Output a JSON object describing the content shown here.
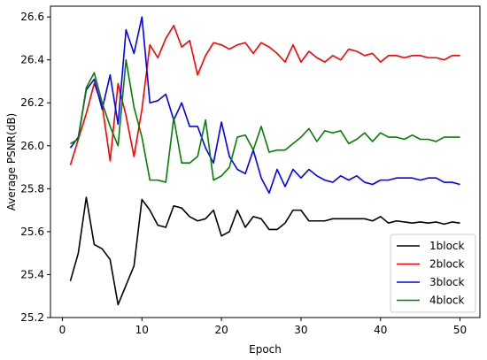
{
  "chart_data": {
    "type": "line",
    "title": "",
    "xlabel": "Epoch",
    "ylabel": "Average PSNR(dB)",
    "xlim": [
      -1.5,
      52.5
    ],
    "ylim": [
      25.2,
      26.65
    ],
    "x_ticks": [
      0,
      10,
      20,
      30,
      40,
      50
    ],
    "y_ticks": [
      25.2,
      25.4,
      25.6,
      25.8,
      26.0,
      26.2,
      26.4,
      26.6
    ],
    "grid": false,
    "legend_position": "lower-right",
    "x": [
      1,
      2,
      3,
      4,
      5,
      6,
      7,
      8,
      9,
      10,
      11,
      12,
      13,
      14,
      15,
      16,
      17,
      18,
      19,
      20,
      21,
      22,
      23,
      24,
      25,
      26,
      27,
      28,
      29,
      30,
      31,
      32,
      33,
      34,
      35,
      36,
      37,
      38,
      39,
      40,
      41,
      42,
      43,
      44,
      45,
      46,
      47,
      48,
      49,
      50
    ],
    "series": [
      {
        "name": "1block",
        "color": "#000000",
        "values": [
          25.37,
          25.5,
          25.76,
          25.54,
          25.52,
          25.47,
          25.26,
          25.35,
          25.44,
          25.75,
          25.7,
          25.63,
          25.62,
          25.72,
          25.71,
          25.67,
          25.65,
          25.66,
          25.7,
          25.58,
          25.6,
          25.7,
          25.62,
          25.67,
          25.66,
          25.61,
          25.61,
          25.64,
          25.7,
          25.7,
          25.65,
          25.65,
          25.65,
          25.66,
          25.66,
          25.66,
          25.66,
          25.66,
          25.65,
          25.67,
          25.64,
          25.65,
          25.645,
          25.64,
          25.645,
          25.64,
          25.645,
          25.635,
          25.645,
          25.64
        ]
      },
      {
        "name": "2block",
        "color": "#ff0000",
        "values": [
          25.91,
          26.03,
          26.15,
          26.29,
          26.19,
          25.93,
          26.29,
          26.14,
          25.95,
          26.17,
          26.47,
          26.41,
          26.5,
          26.56,
          26.46,
          26.49,
          26.33,
          26.42,
          26.48,
          26.47,
          26.45,
          26.47,
          26.48,
          26.43,
          26.48,
          26.46,
          26.43,
          26.39,
          26.47,
          26.39,
          26.44,
          26.41,
          26.39,
          26.42,
          26.4,
          26.45,
          26.44,
          26.42,
          26.43,
          26.39,
          26.42,
          26.42,
          26.41,
          26.42,
          26.42,
          26.41,
          26.41,
          26.4,
          26.42,
          26.42
        ]
      },
      {
        "name": "3block",
        "color": "#0000ff",
        "values": [
          25.99,
          26.04,
          26.26,
          26.31,
          26.17,
          26.33,
          26.1,
          26.54,
          26.43,
          26.6,
          26.2,
          26.21,
          26.24,
          26.12,
          26.2,
          26.09,
          26.09,
          25.99,
          25.92,
          26.11,
          25.95,
          25.89,
          25.87,
          25.98,
          25.85,
          25.78,
          25.89,
          25.81,
          25.89,
          25.85,
          25.89,
          25.86,
          25.84,
          25.83,
          25.86,
          25.84,
          25.86,
          25.83,
          25.82,
          25.84,
          25.84,
          25.85,
          25.85,
          25.85,
          25.84,
          25.85,
          25.85,
          25.83,
          25.83,
          25.82
        ]
      },
      {
        "name": "4block",
        "color": "#008000",
        "values": [
          26.01,
          26.03,
          26.27,
          26.34,
          26.2,
          26.09,
          26.0,
          26.4,
          26.18,
          26.04,
          25.84,
          25.84,
          25.83,
          26.13,
          25.92,
          25.92,
          25.95,
          26.12,
          25.84,
          25.86,
          25.9,
          26.04,
          26.05,
          25.98,
          26.09,
          25.97,
          25.98,
          25.98,
          26.01,
          26.04,
          26.08,
          26.02,
          26.07,
          26.06,
          26.07,
          26.01,
          26.03,
          26.06,
          26.02,
          26.06,
          26.04,
          26.04,
          26.03,
          26.05,
          26.03,
          26.03,
          26.02,
          26.04,
          26.04,
          26.04
        ]
      }
    ]
  }
}
